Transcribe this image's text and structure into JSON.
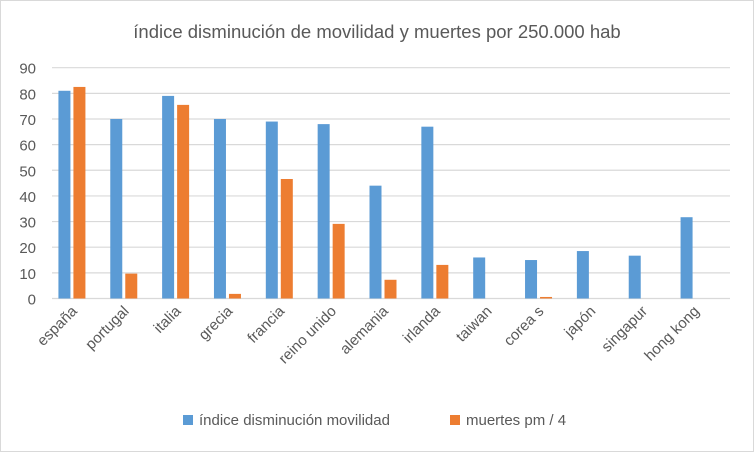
{
  "chart_data": {
    "type": "bar",
    "title": "índice disminución de movilidad y muertes por 250.000 hab",
    "xlabel": "",
    "ylabel": "",
    "ylim": [
      0,
      90
    ],
    "yticks": [
      0,
      10,
      20,
      30,
      40,
      50,
      60,
      70,
      80,
      90
    ],
    "grid": true,
    "legend_position": "bottom",
    "categories": [
      "españa",
      "portugal",
      "italia",
      "grecia",
      "francia",
      "reino unido",
      "alemania",
      "irlanda",
      "taiwan",
      "corea s",
      "japón",
      "singapur",
      "hong kong"
    ],
    "series": [
      {
        "name": "índice disminución movilidad",
        "color": "#5b9bd5",
        "values": [
          81,
          70,
          79,
          70,
          69,
          68,
          44,
          67,
          16,
          15,
          18.5,
          16.7,
          31.7
        ]
      },
      {
        "name": "muertes pm / 4",
        "color": "#ed7d31",
        "values": [
          82.5,
          9.7,
          75.5,
          1.8,
          46.6,
          29.1,
          7.3,
          13.1,
          0,
          0.6,
          0,
          0,
          0
        ]
      }
    ]
  }
}
